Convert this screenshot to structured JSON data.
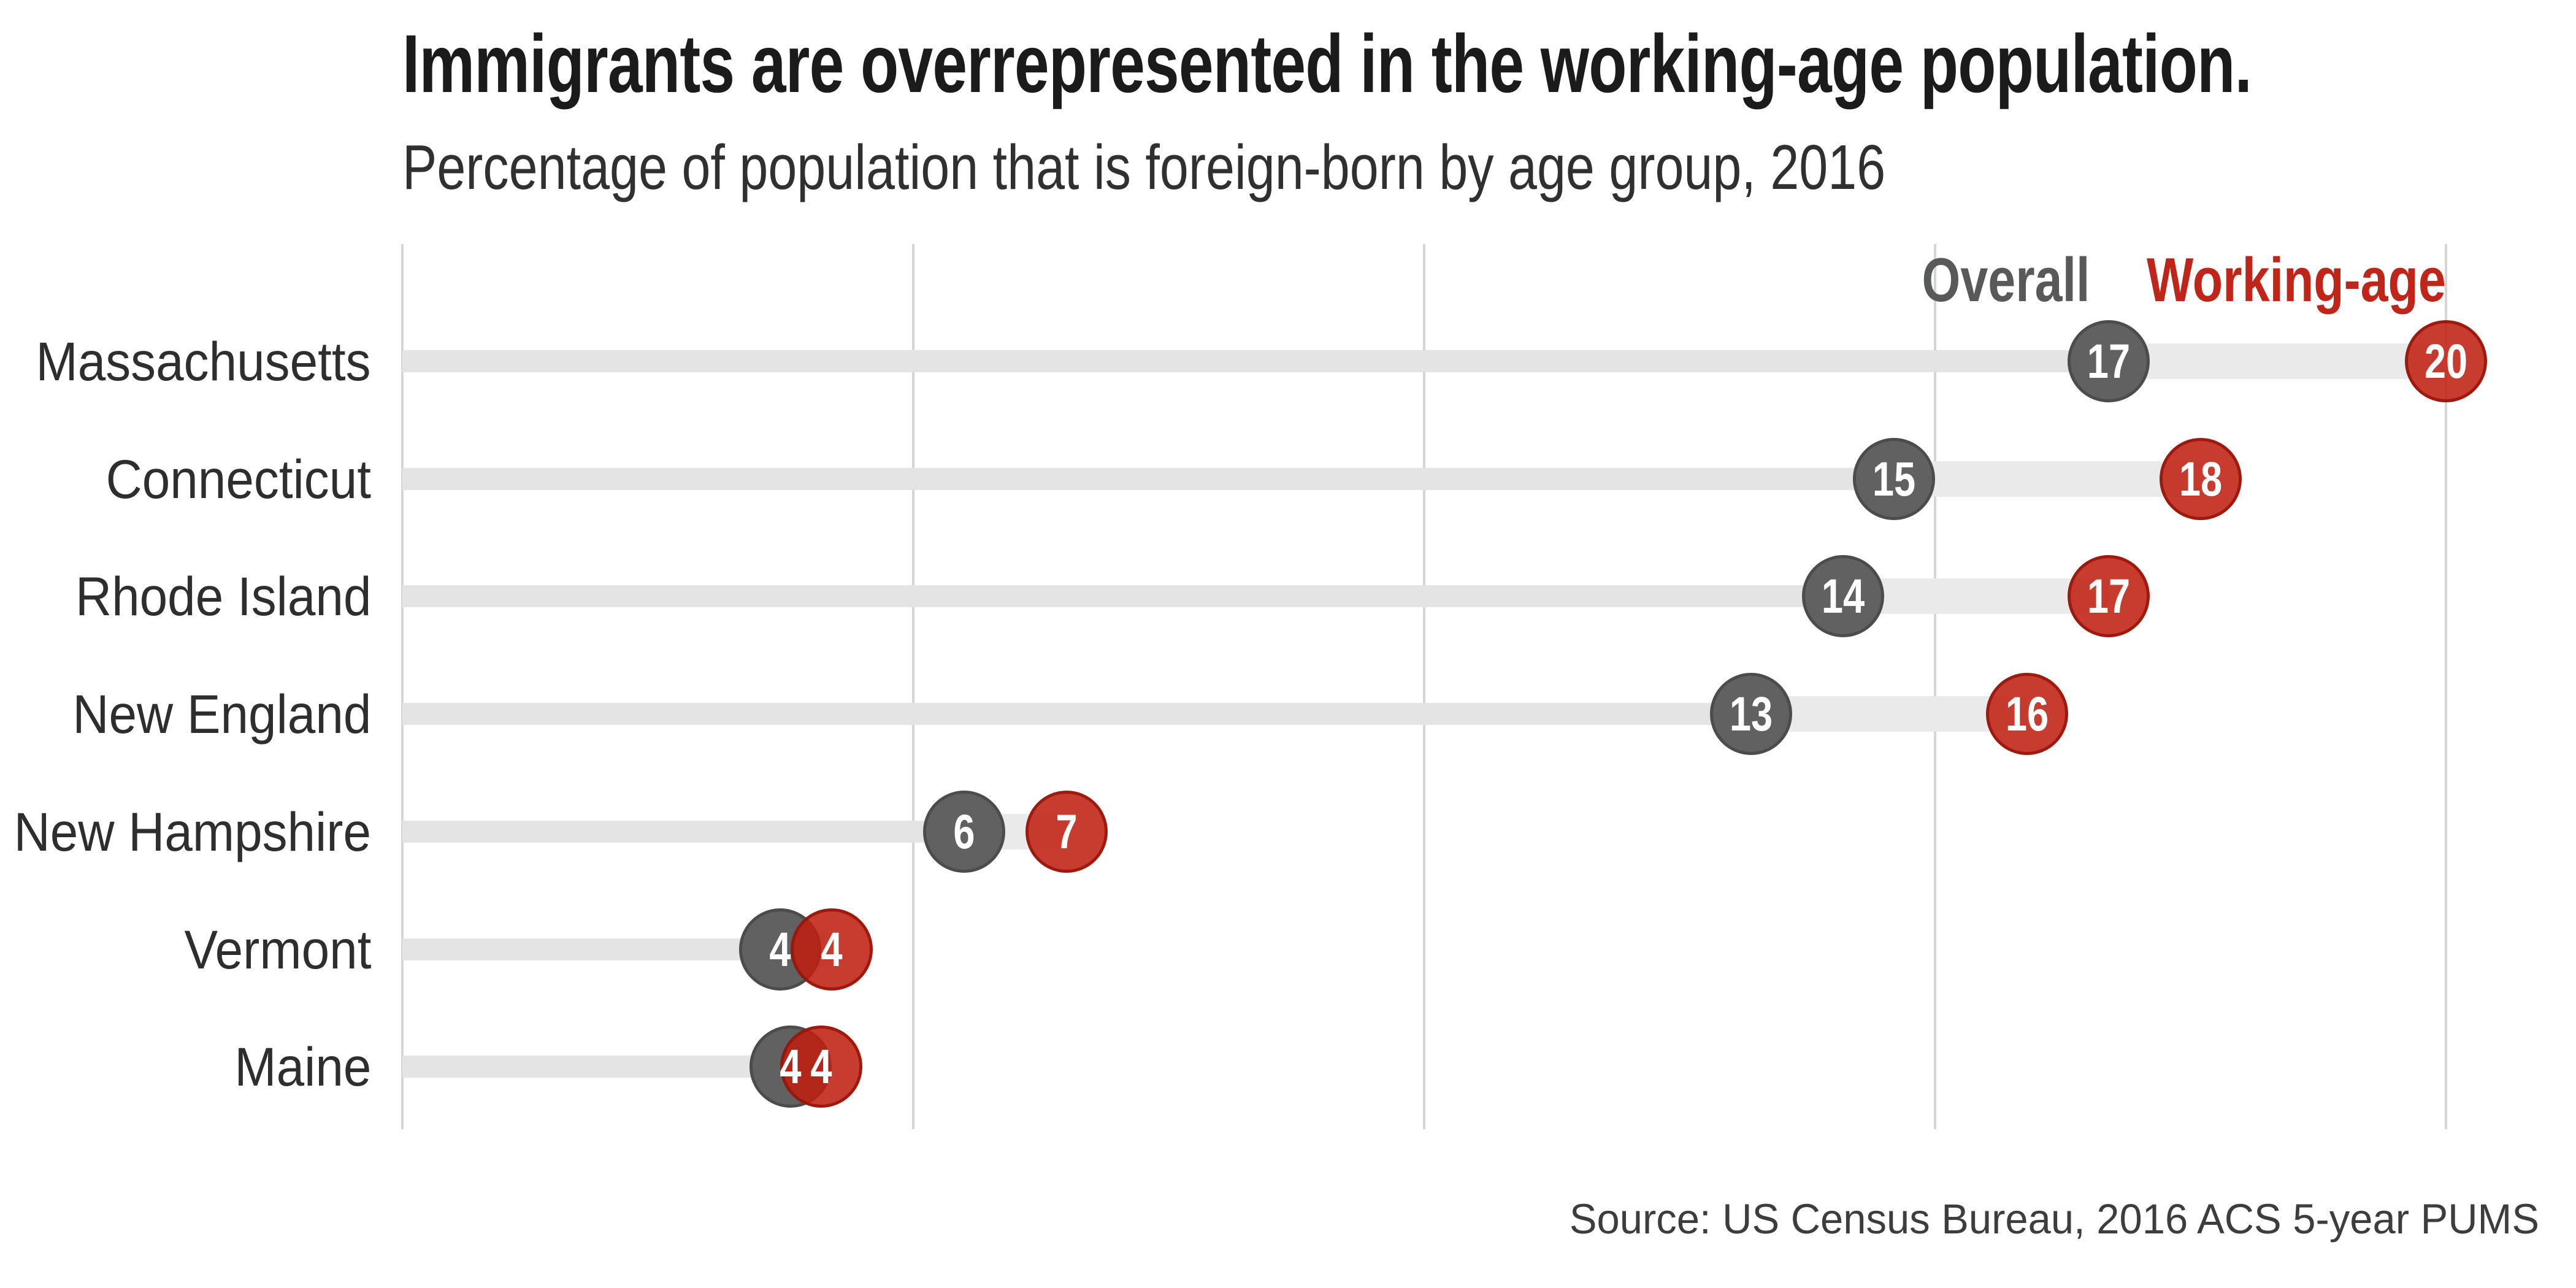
{
  "header": {
    "title": "Immigrants are overrepresented in the working-age population.",
    "subtitle": "Percentage of population that is foreign-born by age group, 2016"
  },
  "legend": {
    "overall_label": "Overall",
    "working_age_label": "Working-age"
  },
  "footer": {
    "source": "Source: US Census Bureau, 2016 ACS 5-year PUMS"
  },
  "colors": {
    "title_text": "#1b1b1b",
    "subtitle_text": "#303030",
    "row_label_text": "#2e2e2e",
    "source_text": "#3d3d3d",
    "overall_fill": "#616161",
    "overall_stroke": "#4c4c4c",
    "overall_legend_text": "#58595b",
    "working_age_fill": "#c01f10",
    "working_age_stroke": "#961408",
    "working_age_legend_text": "#c0251a",
    "bar_base": "#e4e4e4",
    "bar_extension": "#eaeaea",
    "gridline": "#d5d5d5",
    "dot_value_text": "#ffffff",
    "background": "#ffffff"
  },
  "chart_data": {
    "type": "dumbbell",
    "title": "Immigrants are overrepresented in the working-age population.",
    "subtitle": "Percentage of population that is foreign-born by age group, 2016",
    "categories": [
      "Massachusetts",
      "Connecticut",
      "Rhode Island",
      "New England",
      "New Hampshire",
      "Vermont",
      "Maine"
    ],
    "series": [
      {
        "name": "Overall",
        "labels": [
          17,
          15,
          14,
          13,
          6,
          4,
          4
        ],
        "plotted_values": [
          16.7,
          14.6,
          14.1,
          13.2,
          5.5,
          3.7,
          3.8
        ]
      },
      {
        "name": "Working-age",
        "labels": [
          20,
          18,
          17,
          16,
          7,
          4,
          4
        ],
        "plotted_values": [
          20.0,
          17.6,
          16.7,
          15.9,
          6.5,
          4.2,
          4.1
        ]
      }
    ],
    "xlim": [
      0,
      21.2
    ],
    "gridline_values": [
      0,
      5,
      10,
      15,
      20
    ],
    "grid": "vertical-only",
    "legend_position": "top-right-inside",
    "source": "Source: US Census Bureau, 2016 ACS 5-year PUMS"
  }
}
